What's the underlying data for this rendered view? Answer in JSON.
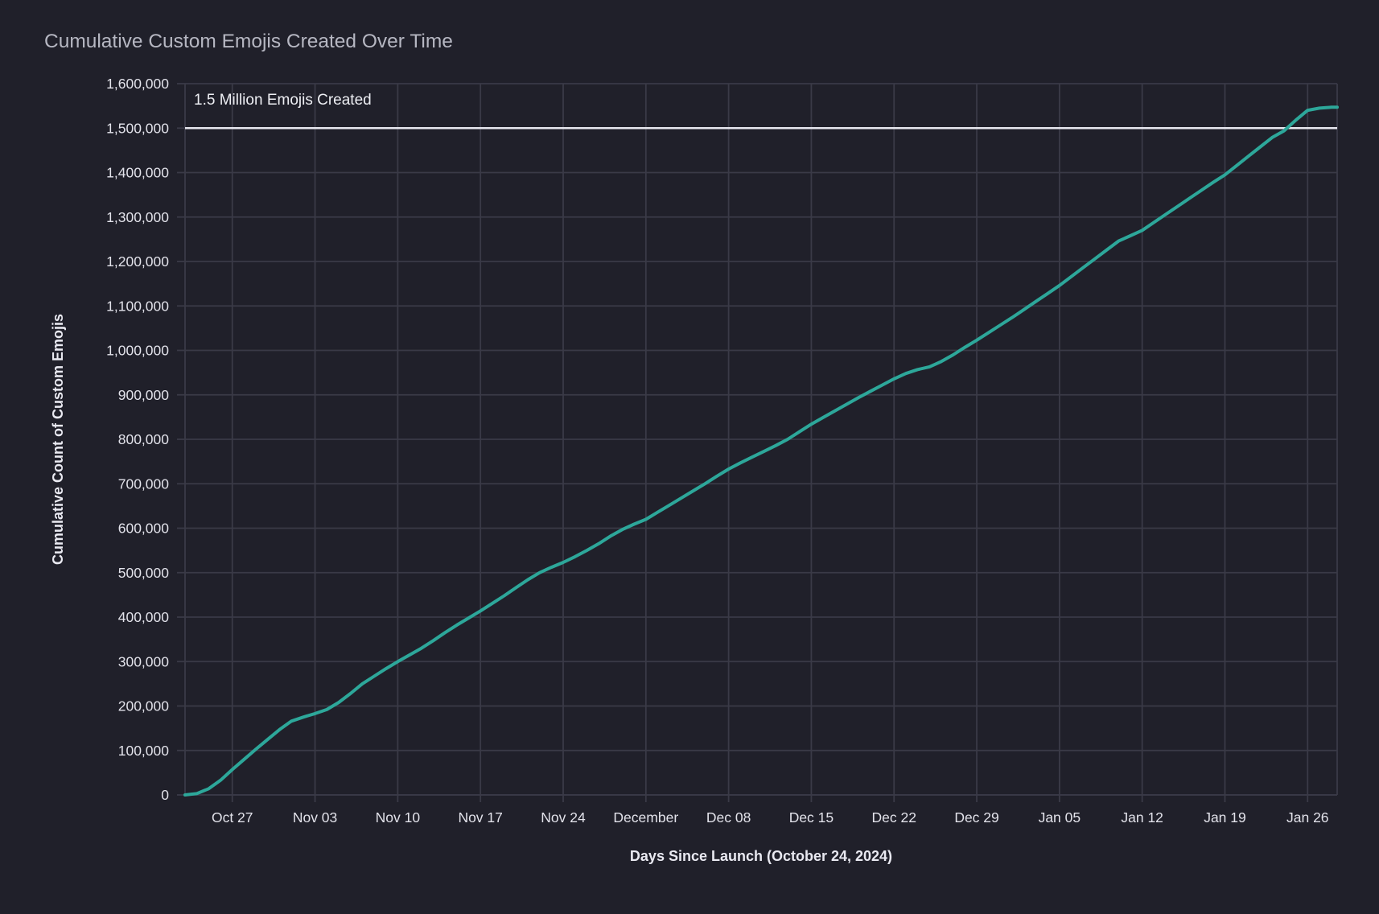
{
  "chart": {
    "title": "Cumulative Custom Emojis Created Over Time",
    "x_axis_title": "Days Since Launch (October 24, 2024)",
    "y_axis_title": "Cumulative Count of Custom Emojis",
    "annotation_label": "1.5 Million Emojis Created",
    "colors": {
      "background": "#20202a",
      "grid": "#3a3a47",
      "line": "#2da79a",
      "reference_line": "#e6e6ee",
      "title_text": "#b6b7c2",
      "tick_text": "#e2e2ea",
      "axis_title_text": "#e9e9f1"
    }
  },
  "chart_data": {
    "type": "line",
    "title": "Cumulative Custom Emojis Created Over Time",
    "xlabel": "Days Since Launch (October 24, 2024)",
    "ylabel": "Cumulative Count of Custom Emojis",
    "grid": true,
    "legend_position": "none",
    "ylim": [
      0,
      1600000
    ],
    "xlim_days": [
      -1,
      96.5
    ],
    "y_ticks": [
      0,
      100000,
      200000,
      300000,
      400000,
      500000,
      600000,
      700000,
      800000,
      900000,
      1000000,
      1100000,
      1200000,
      1300000,
      1400000,
      1500000,
      1600000
    ],
    "y_tick_labels": [
      "0",
      "100,000",
      "200,000",
      "300,000",
      "400,000",
      "500,000",
      "600,000",
      "700,000",
      "800,000",
      "900,000",
      "1,000,000",
      "1,100,000",
      "1,200,000",
      "1,300,000",
      "1,400,000",
      "1,500,000",
      "1,600,000"
    ],
    "x_tick_days": [
      3,
      10,
      17,
      24,
      31,
      38,
      45,
      52,
      59,
      66,
      73,
      80,
      87,
      94
    ],
    "x_tick_labels": [
      "Oct 27",
      "Nov 03",
      "Nov 10",
      "Nov 17",
      "Nov 24",
      "December",
      "Dec 08",
      "Dec 15",
      "Dec 22",
      "Dec 29",
      "Jan 05",
      "Jan 12",
      "Jan 19",
      "Jan 26"
    ],
    "reference_line": {
      "value": 1500000,
      "label": "1.5 Million Emojis Created"
    },
    "series": [
      {
        "name": "Cumulative Custom Emojis",
        "x_days": [
          -1,
          0,
          1,
          2,
          3,
          4,
          5,
          6,
          7,
          8,
          9,
          10,
          11,
          12,
          13,
          14,
          15,
          16,
          17,
          18,
          19,
          20,
          21,
          22,
          23,
          24,
          25,
          26,
          27,
          28,
          29,
          30,
          31,
          32,
          33,
          34,
          35,
          36,
          37,
          38,
          39,
          40,
          41,
          42,
          43,
          44,
          45,
          46,
          47,
          48,
          49,
          50,
          51,
          52,
          53,
          54,
          55,
          56,
          57,
          58,
          59,
          60,
          61,
          62,
          63,
          64,
          65,
          66,
          67,
          68,
          69,
          70,
          71,
          72,
          73,
          74,
          75,
          76,
          77,
          78,
          79,
          80,
          81,
          82,
          83,
          84,
          85,
          86,
          87,
          88,
          89,
          90,
          91,
          92,
          93,
          94,
          95,
          96,
          96.5
        ],
        "y": [
          0,
          3000,
          14000,
          33000,
          57000,
          80000,
          103000,
          125000,
          147000,
          166000,
          175000,
          183000,
          192000,
          208000,
          228000,
          250000,
          267000,
          284000,
          300000,
          315000,
          330000,
          347000,
          365000,
          382000,
          398000,
          414000,
          431000,
          448000,
          466000,
          484000,
          500000,
          512000,
          523000,
          536000,
          550000,
          565000,
          582000,
          597000,
          609000,
          620000,
          636000,
          652000,
          668000,
          684000,
          700000,
          717000,
          733000,
          747000,
          760000,
          773000,
          786000,
          800000,
          817000,
          834000,
          849000,
          864000,
          879000,
          894000,
          908000,
          922000,
          936000,
          948000,
          957000,
          963000,
          975000,
          990000,
          1007000,
          1023000,
          1040000,
          1057000,
          1074000,
          1092000,
          1110000,
          1128000,
          1146000,
          1166000,
          1186000,
          1206000,
          1226000,
          1246000,
          1258000,
          1270000,
          1288000,
          1306000,
          1324000,
          1342000,
          1360000,
          1378000,
          1395000,
          1416000,
          1437000,
          1458000,
          1479000,
          1494000,
          1518000,
          1540000,
          1545000,
          1547000,
          1547000
        ]
      }
    ]
  }
}
